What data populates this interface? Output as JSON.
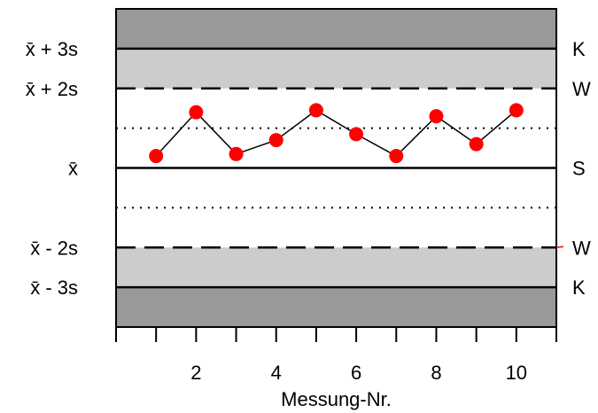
{
  "chart_data": {
    "type": "line",
    "title": "",
    "xlabel": "Messung-Nr.",
    "ylabel": "",
    "x": [
      1,
      2,
      3,
      4,
      5,
      6,
      7,
      8,
      9,
      10
    ],
    "series": [
      {
        "values": [
          0.3,
          1.4,
          0.35,
          0.7,
          1.45,
          0.85,
          0.3,
          1.3,
          0.6,
          1.45
        ],
        "marker_color": "#ff0000",
        "line_color": "#000000"
      }
    ],
    "xlim": [
      0,
      11
    ],
    "ylim": [
      -4,
      4
    ],
    "xticks": [
      2,
      4,
      6,
      8,
      10
    ],
    "x_minor_ticks": [
      1,
      3,
      5,
      7,
      9
    ],
    "control_lines": [
      {
        "level": 3,
        "style": "solid",
        "left_label": "x̄ + 3s",
        "right_label": "K"
      },
      {
        "level": 2,
        "style": "dashed",
        "left_label": "x̄ + 2s",
        "right_label": "W"
      },
      {
        "level": 1,
        "style": "dotted",
        "left_label": "",
        "right_label": ""
      },
      {
        "level": 0,
        "style": "solid",
        "left_label": "x̄",
        "right_label": "S"
      },
      {
        "level": -1,
        "style": "dotted",
        "left_label": "",
        "right_label": ""
      },
      {
        "level": -2,
        "style": "dashed",
        "left_label": "x̄ - 2s",
        "right_label": "W"
      },
      {
        "level": -3,
        "style": "solid",
        "left_label": "x̄ - 3s",
        "right_label": "K"
      }
    ],
    "bands": [
      {
        "from": 3,
        "to": 4,
        "color": "#999999"
      },
      {
        "from": 2,
        "to": 3,
        "color": "#cccccc"
      },
      {
        "from": -3,
        "to": -2,
        "color": "#cccccc"
      },
      {
        "from": -4,
        "to": -3,
        "color": "#999999"
      }
    ],
    "grid": false,
    "legend": "none"
  }
}
